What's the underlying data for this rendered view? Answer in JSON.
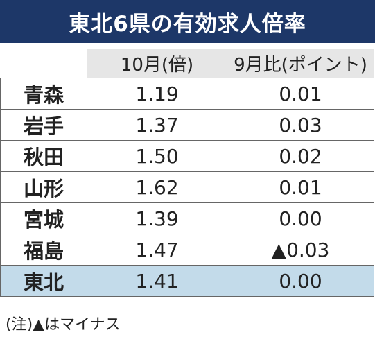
{
  "title": "東北6県の有効求人倍率",
  "table": {
    "header": [
      "10月(倍)",
      "9月比(ポイント)"
    ],
    "rows": [
      [
        "青森",
        "1.19",
        "0.01"
      ],
      [
        "岩手",
        "1.37",
        "0.03"
      ],
      [
        "秋田",
        "1.50",
        "0.02"
      ],
      [
        "山形",
        "1.62",
        "0.01"
      ],
      [
        "宮城",
        "1.39",
        "0.00"
      ],
      [
        "福島",
        "1.47",
        "▲0.03"
      ],
      [
        "東北",
        "1.41",
        "0.00"
      ]
    ]
  },
  "note": "(注)▲はマイナス"
}
